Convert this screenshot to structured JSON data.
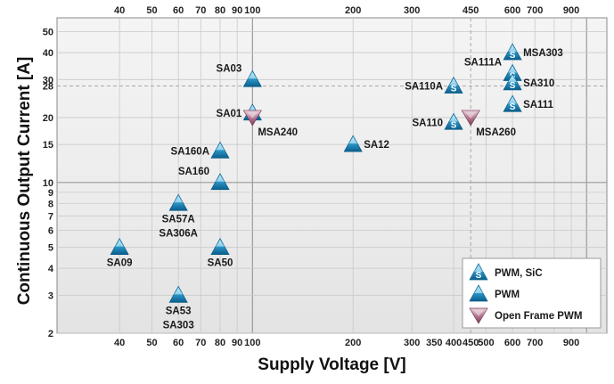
{
  "chart_data": {
    "type": "scatter",
    "title": "",
    "xlabel": "Supply Voltage [V]",
    "ylabel": "Continuous Output Current [A]",
    "xscale": "log",
    "yscale": "log",
    "xlim": [
      26,
      1150
    ],
    "ylim": [
      2,
      58
    ],
    "grid": true,
    "legend_position": "bottom-right",
    "x_ticks_bottom": [
      40,
      50,
      60,
      70,
      80,
      90,
      100,
      200,
      300,
      350,
      400,
      450,
      500,
      600,
      700,
      900
    ],
    "x_tick_labels_bottom": [
      "40",
      "50",
      "60",
      "70",
      "80",
      "90",
      "100",
      "200",
      "300",
      "350",
      "400",
      "450",
      "500",
      "600",
      "700",
      "900"
    ],
    "x_ticks_top": [
      40,
      50,
      60,
      70,
      80,
      90,
      100,
      200,
      300,
      450,
      600,
      700,
      900
    ],
    "x_tick_labels_top": [
      "40",
      "50",
      "60",
      "70",
      "80",
      "90",
      "100",
      "200",
      "300",
      "450",
      "600",
      "700",
      "900"
    ],
    "y_ticks": [
      2,
      3,
      4,
      5,
      6,
      7,
      8,
      9,
      10,
      15,
      20,
      28,
      30,
      40,
      50
    ],
    "y_tick_labels": [
      "2",
      "3",
      "4",
      "5",
      "6",
      "7",
      "8",
      "9",
      "10",
      "15",
      "20",
      "28",
      "30",
      "40",
      "50"
    ],
    "legend": [
      {
        "category": "pwm_sic",
        "label": "PWM, SiC"
      },
      {
        "category": "pwm",
        "label": "PWM"
      },
      {
        "category": "open_frame",
        "label": "Open Frame PWM"
      }
    ],
    "series": [
      {
        "name": "PWM, SiC",
        "category": "pwm_sic",
        "points": [
          {
            "x": 400,
            "y": 28,
            "label": "SA110A",
            "label_pos": "left"
          },
          {
            "x": 400,
            "y": 19,
            "label": "SA110",
            "label_pos": "left"
          },
          {
            "x": 600,
            "y": 40,
            "label": "MSA303",
            "label_pos": "right"
          },
          {
            "x": 600,
            "y": 32,
            "label": "SA111A",
            "label_pos": "left-up"
          },
          {
            "x": 600,
            "y": 29,
            "label": "SA310",
            "label_pos": "right"
          },
          {
            "x": 600,
            "y": 23,
            "label": "SA111",
            "label_pos": "right"
          },
          {
            "x": 100,
            "y": 21,
            "label": "SA01",
            "label_pos": "left"
          }
        ]
      },
      {
        "name": "PWM",
        "category": "pwm",
        "points": [
          {
            "x": 100,
            "y": 30,
            "label": "SA03",
            "label_pos": "left-up"
          },
          {
            "x": 80,
            "y": 14,
            "label": "SA160A",
            "label_pos": "left"
          },
          {
            "x": 80,
            "y": 10,
            "label": "SA160",
            "label_pos": "left-up"
          },
          {
            "x": 60,
            "y": 8,
            "label": "SA57A",
            "label_pos": "below"
          },
          {
            "x": 60,
            "y": 8,
            "label": "SA306A",
            "label_pos": "below2"
          },
          {
            "x": 40,
            "y": 5,
            "label": "SA09",
            "label_pos": "below-left"
          },
          {
            "x": 80,
            "y": 5,
            "label": "SA50",
            "label_pos": "below"
          },
          {
            "x": 60,
            "y": 3,
            "label": "SA53",
            "label_pos": "below"
          },
          {
            "x": 60,
            "y": 3,
            "label": "SA303",
            "label_pos": "below2"
          },
          {
            "x": 200,
            "y": 15,
            "label": "SA12",
            "label_pos": "right"
          }
        ]
      },
      {
        "name": "Open Frame PWM",
        "category": "open_frame",
        "points": [
          {
            "x": 100,
            "y": 20,
            "label": "MSA240",
            "label_pos": "below-right"
          },
          {
            "x": 450,
            "y": 20,
            "label": "MSA260",
            "label_pos": "below-right"
          }
        ]
      }
    ]
  },
  "colors": {
    "pwm_light": "#8ed8f2",
    "pwm_dark": "#0d6fa0",
    "open_light": "#d9b6c6",
    "open_dark": "#8d4a68",
    "grid": "#bdbdbd",
    "frame": "#8a8a8a"
  }
}
